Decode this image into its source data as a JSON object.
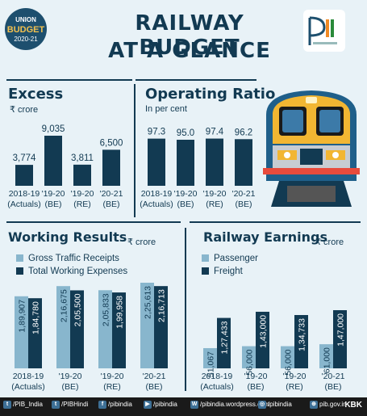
{
  "badge": {
    "l1": "UNION",
    "l2": "BUDGET",
    "l3": "2020-21"
  },
  "title": {
    "l1": "RAILWAY BUDGET",
    "l2": "AT A GLANCE"
  },
  "colors": {
    "dark": "#123a52",
    "light": "#88b6cd",
    "bg": "#e8f2f7"
  },
  "excess": {
    "title": "Excess",
    "unit": "₹ crore"
  },
  "operating": {
    "title": "Operating Ratio",
    "unit": "In per cent"
  },
  "working": {
    "title": "Working Results",
    "unit": "₹ crore",
    "legend": [
      "Gross Traffic Receipts",
      "Total Working Expenses"
    ]
  },
  "earnings": {
    "title": "Railway Earnings",
    "unit": "₹ crore",
    "legend": [
      "Passenger",
      "Freight"
    ]
  },
  "footer": {
    "items": [
      {
        "icon": "twitter-icon",
        "glyph": "t",
        "text": "/PIB_India"
      },
      {
        "icon": "twitter-icon",
        "glyph": "t",
        "text": "/PIBHindi"
      },
      {
        "icon": "facebook-icon",
        "glyph": "f",
        "text": "/pibindia"
      },
      {
        "icon": "youtube-icon",
        "glyph": "▶",
        "text": "/pibindia"
      },
      {
        "icon": "wordpress-icon",
        "glyph": "W",
        "text": "/pibindia.wordpress.com"
      },
      {
        "icon": "instagram-icon",
        "glyph": "◎",
        "text": "/pibindia"
      },
      {
        "icon": "globe-icon",
        "glyph": "⊕",
        "text": "pib.gov.in"
      }
    ],
    "kbk": "KBK"
  },
  "chart_data": [
    {
      "type": "bar",
      "title": "Excess",
      "unit": "₹ crore",
      "categories": [
        [
          "2018-19",
          "(Actuals)"
        ],
        [
          "'19-20",
          "(BE)"
        ],
        [
          "'19-20",
          "(RE)"
        ],
        [
          "'20-21",
          "(BE)"
        ]
      ],
      "values": [
        3774,
        9035,
        3811,
        6500
      ],
      "labels": [
        "3,774",
        "9,035",
        "3,811",
        "6,500"
      ]
    },
    {
      "type": "bar",
      "title": "Operating Ratio",
      "unit": "In per cent",
      "categories": [
        [
          "2018-19",
          "(Actuals)"
        ],
        [
          "'19-20",
          "(BE)"
        ],
        [
          "'19-20",
          "(RE)"
        ],
        [
          "'20-21",
          "(BE)"
        ]
      ],
      "values": [
        97.3,
        95.0,
        97.4,
        96.2
      ],
      "labels": [
        "97.3",
        "95.0",
        "97.4",
        "96.2"
      ]
    },
    {
      "type": "bar",
      "title": "Working Results",
      "unit": "₹ crore",
      "categories": [
        [
          "2018-19",
          "(Actuals)"
        ],
        [
          "'19-20",
          "(BE)"
        ],
        [
          "'19-20",
          "(RE)"
        ],
        [
          "'20-21",
          "(BE)"
        ]
      ],
      "series": [
        {
          "name": "Gross Traffic Receipts",
          "values": [
            189907,
            216675,
            205833,
            225613
          ],
          "labels": [
            "1,89,907",
            "2,16,675",
            "2,05,833",
            "2,25,613"
          ]
        },
        {
          "name": "Total Working Expenses",
          "values": [
            184780,
            205500,
            199958,
            216713
          ],
          "labels": [
            "1,84,780",
            "2,05,500",
            "1,99,958",
            "2,16,713"
          ]
        }
      ]
    },
    {
      "type": "bar",
      "title": "Railway Earnings",
      "unit": "₹ crore",
      "categories": [
        [
          "2018-19",
          "(Actuals)"
        ],
        [
          "'19-20",
          "(BE)"
        ],
        [
          "'19-20",
          "(RE)"
        ],
        [
          "'20-21",
          "(BE)"
        ]
      ],
      "series": [
        {
          "name": "Passenger",
          "values": [
            51067,
            56000,
            56000,
            61000
          ],
          "labels": [
            "51,067",
            "56,000",
            "56,000",
            "61,000"
          ]
        },
        {
          "name": "Freight",
          "values": [
            127433,
            143000,
            134733,
            147000
          ],
          "labels": [
            "1,27,433",
            "1,43,000",
            "1,34,733",
            "1,47,000"
          ]
        }
      ]
    }
  ]
}
